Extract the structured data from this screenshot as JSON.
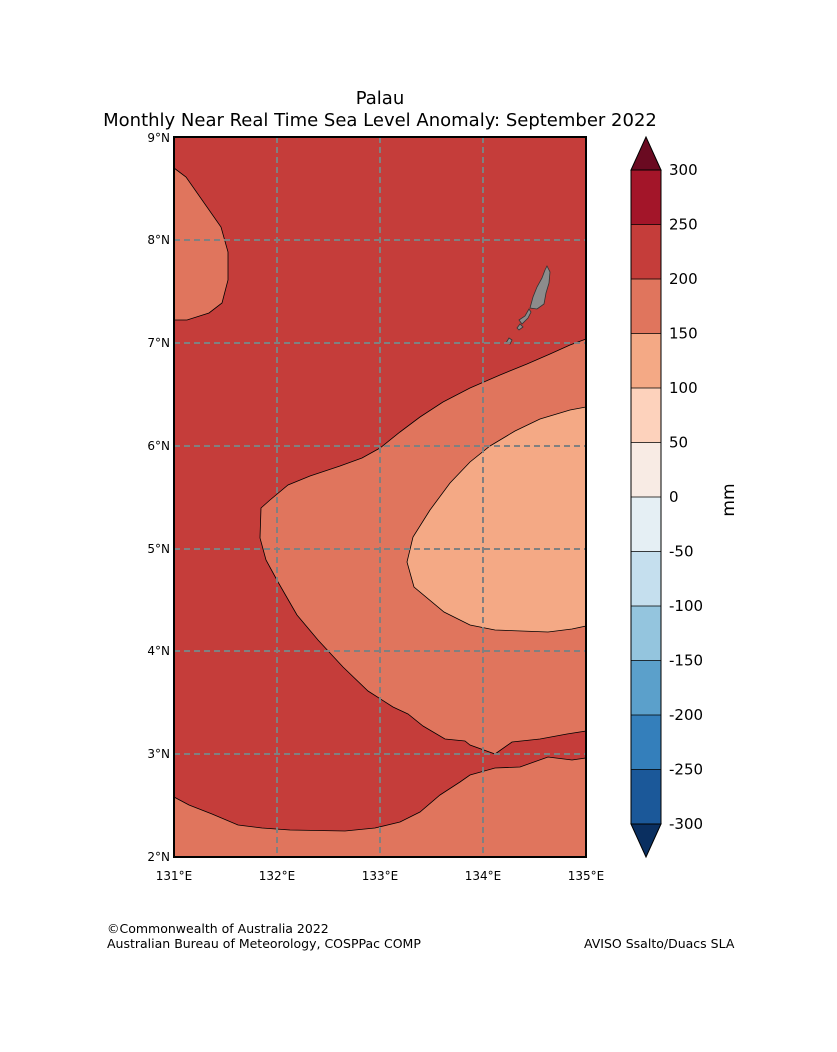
{
  "title": {
    "line1": "Palau",
    "line2": "Monthly Near Real Time Sea Level Anomaly: September 2022"
  },
  "map": {
    "lon_ticks": [
      "131°E",
      "132°E",
      "133°E",
      "134°E",
      "135°E"
    ],
    "lat_ticks": [
      "9°N",
      "8°N",
      "7°N",
      "6°N",
      "5°N",
      "4°N",
      "3°N",
      "2°N"
    ],
    "lon_range": [
      131,
      135
    ],
    "lat_range": [
      2,
      9
    ],
    "gridlines": "dashed",
    "land_color": "#8c8c8c",
    "region_values_mm": {
      "background": "200 to 250",
      "west_lobe": "150 to 200",
      "south_band": "150 to 200",
      "east_tongue": "150 to 200",
      "east_core": "100 to 150"
    }
  },
  "colorbar": {
    "label": "mm",
    "tick_labels": [
      "300",
      "250",
      "200",
      "150",
      "100",
      "50",
      "0",
      "-50",
      "-100",
      "-150",
      "-200",
      "-250",
      "-300"
    ],
    "colors": [
      "#a31529",
      "#c53d3a",
      "#e0755d",
      "#f4a985",
      "#fdd2bc",
      "#f8ebe4",
      "#e5eff4",
      "#c5dfee",
      "#94c5de",
      "#5ba0cb",
      "#347fbb",
      "#1b5899"
    ],
    "over_color": "#6a0a21",
    "under_color": "#0a2f60"
  },
  "footer": {
    "copyright": "©Commonwealth of Australia 2022",
    "agency": "Australian Bureau of Meteorology, COSPPac COMP",
    "source": "AVISO Ssalto/Duacs SLA"
  }
}
